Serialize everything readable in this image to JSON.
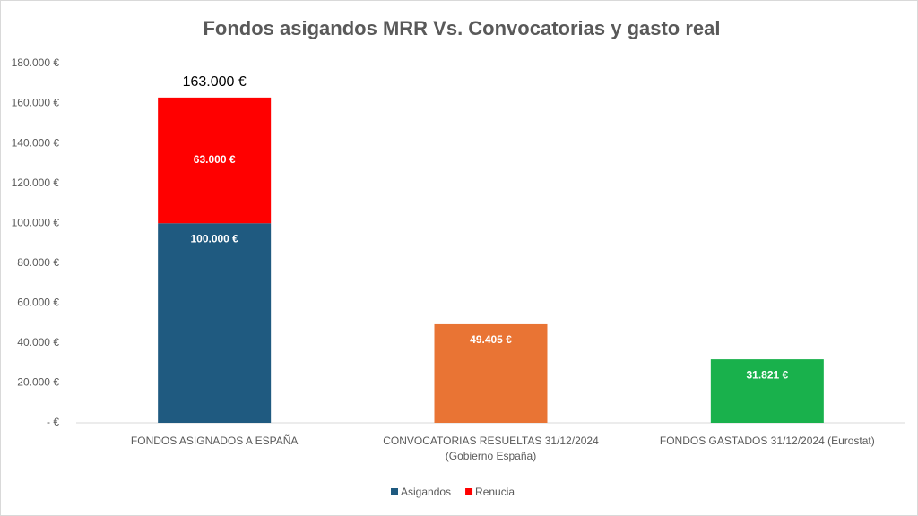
{
  "chart_data": {
    "type": "stacked_bar",
    "title": "Fondos asigandos MRR Vs. Convocatorias y gasto real",
    "categories": [
      "FONDOS ASIGNADOS A ESPAÑA",
      "CONVOCATORIAS RESUELTAS 31/12/2024\n(Gobierno España)",
      "FONDOS GASTADOS 31/12/2024 (Eurostat)"
    ],
    "series": [
      {
        "name": "Asigandos",
        "color": "#1f5a80",
        "point_colors": [
          "#1f5a80",
          "#e97434",
          "#19b14c"
        ],
        "label_position": "inside_end",
        "values": [
          100000,
          49405,
          31821
        ],
        "value_labels": [
          "100.000 €",
          "49.405 €",
          "31.821 €"
        ]
      },
      {
        "name": "Renucia",
        "color": "#ff0000",
        "label_position": "center",
        "values": [
          63000,
          null,
          null
        ],
        "value_labels": [
          "63.000 €",
          null,
          null
        ]
      }
    ],
    "stack_total": {
      "category_index": 0,
      "value": 163000,
      "label": "163.000 €"
    },
    "ylim": [
      0,
      180000
    ],
    "yticks": [
      {
        "value": 0,
        "label": "-  €"
      },
      {
        "value": 20000,
        "label": "20.000 €"
      },
      {
        "value": 40000,
        "label": "40.000 €"
      },
      {
        "value": 60000,
        "label": "60.000 €"
      },
      {
        "value": 80000,
        "label": "80.000 €"
      },
      {
        "value": 100000,
        "label": "100.000 €"
      },
      {
        "value": 120000,
        "label": "120.000 €"
      },
      {
        "value": 140000,
        "label": "140.000 €"
      },
      {
        "value": 160000,
        "label": "160.000 €"
      },
      {
        "value": 180000,
        "label": "180.000 €"
      }
    ],
    "grid": false,
    "legend": "bottom"
  }
}
